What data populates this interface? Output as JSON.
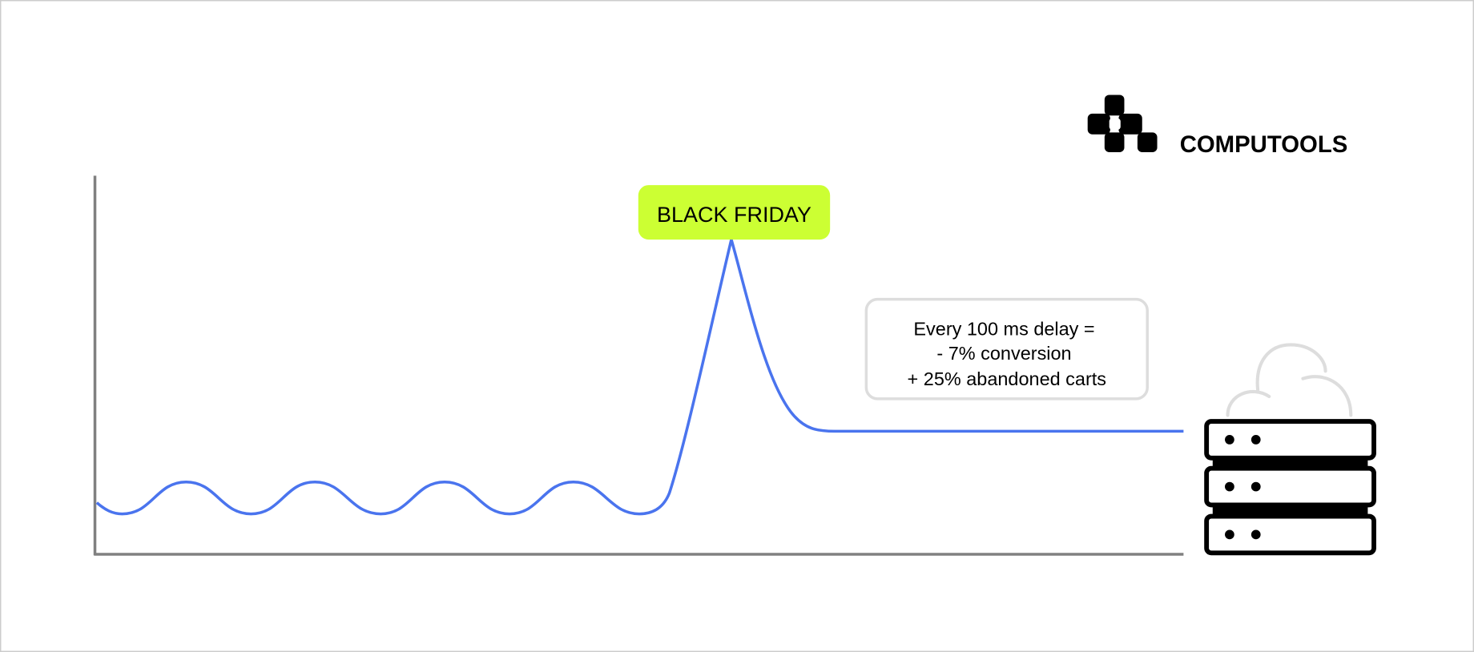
{
  "brand": {
    "name": "COMPUTOOLS"
  },
  "peak_label": "BLACK FRIDAY",
  "info_box": {
    "lines": [
      "Every 100 ms delay =",
      "- 7% conversion",
      "+ 25% abandoned carts"
    ]
  },
  "icons": {
    "server": "server-stack-icon",
    "cloud": "cloud-icon",
    "logo": "computools-logo-icon"
  },
  "colors": {
    "line": "#4a74ee",
    "axis": "#808080",
    "label_bg": "#ccff33",
    "box_border": "#dddddd",
    "server": "#000000",
    "cloud": "#dddddd"
  }
}
